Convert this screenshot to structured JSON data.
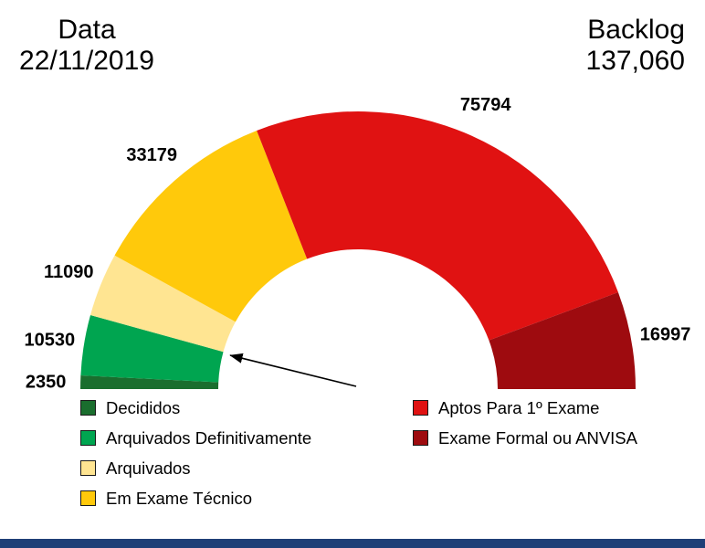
{
  "header": {
    "date_label": "Data",
    "date_value": "22/11/2019",
    "backlog_label": "Backlog",
    "backlog_value": "137,060"
  },
  "chart_data": {
    "type": "donut",
    "variant": "semicircle-gauge",
    "start_angle_deg": 180,
    "end_angle_deg": 0,
    "total": 149940,
    "segments": [
      {
        "label": "Decididos",
        "value": 2350,
        "color": "#1A6E2E"
      },
      {
        "label": "Arquivados Definitivamente",
        "value": 10530,
        "color": "#00A550"
      },
      {
        "label": "Arquivados",
        "value": 11090,
        "color": "#FFE592"
      },
      {
        "label": "Em Exame Técnico",
        "value": 33179,
        "color": "#FFC90B"
      },
      {
        "label": "Aptos Para 1º Exame",
        "value": 75794,
        "color": "#E01212"
      },
      {
        "label": "Exame Formal ou ANVISA",
        "value": 16997,
        "color": "#9E0B0F"
      }
    ],
    "legend_position": "bottom",
    "legend_columns": {
      "left": [
        0,
        1,
        2,
        3
      ],
      "right": [
        4,
        5
      ]
    }
  },
  "bottom_bar_color": "#1F3F77"
}
